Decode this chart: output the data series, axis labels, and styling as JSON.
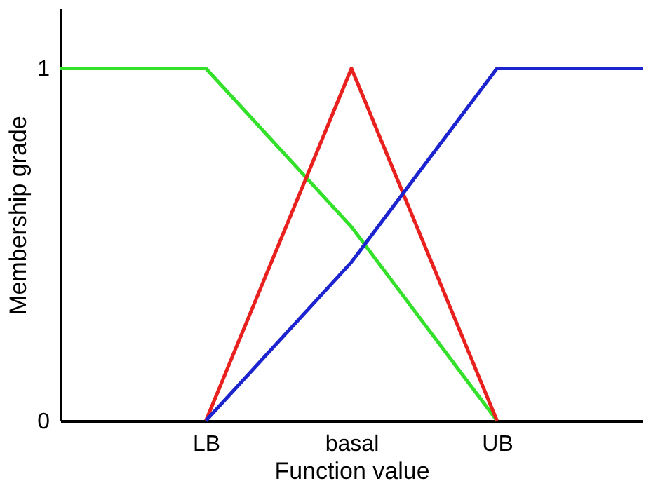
{
  "chart_data": {
    "type": "line",
    "xlabel": "Function value",
    "ylabel": "Membership grade",
    "categories": [
      null,
      "LB",
      "basal",
      "UB",
      null
    ],
    "ylim": [
      0,
      1.17
    ],
    "yticks": [
      0,
      1
    ],
    "grid": false,
    "legend": false,
    "marker": "none",
    "line_style": "solid",
    "series": [
      {
        "color": "#33e02a",
        "values": [
          1,
          1,
          0.55,
          0,
          null
        ]
      },
      {
        "color": "#e8201e",
        "values": [
          null,
          0,
          1,
          0,
          null
        ]
      },
      {
        "color": "#1c24d0",
        "values": [
          null,
          0,
          0.45,
          1,
          1
        ]
      }
    ]
  }
}
